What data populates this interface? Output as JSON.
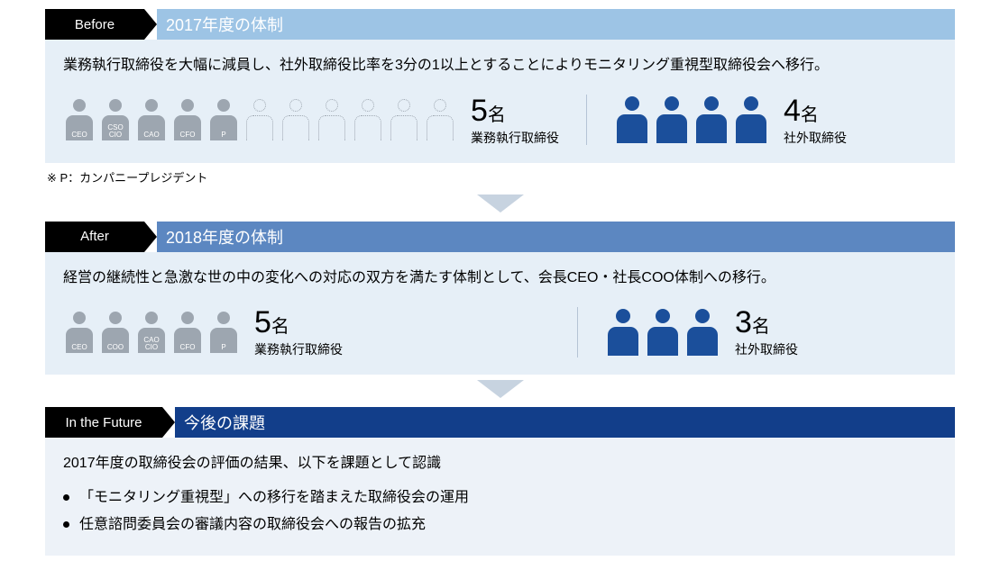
{
  "colors": {
    "before_header_bg": "#9dc4e5",
    "before_body_bg": "#e6eff7",
    "after_header_bg": "#5c87c1",
    "after_body_bg": "#e6eff7",
    "future_header_bg": "#123e8a",
    "future_body_bg": "#edf2f8",
    "person_gray": "#9da6b0",
    "person_blue": "#1b4f9b",
    "chevron_arrow": "#c7d3e0",
    "divider": "#b5c4d5"
  },
  "before": {
    "tag": "Before",
    "title": "2017年度の体制",
    "desc": "業務執行取締役を大幅に減員し、社外取締役比率を3分の1以上とすることによりモニタリング重視型取締役会へ移行。",
    "exec": {
      "filled_labels": [
        "CEO",
        "CSO\nCIO",
        "CAO",
        "CFO",
        "P"
      ],
      "outline_count": 6,
      "count": "5",
      "unit": "名",
      "label": "業務執行取締役"
    },
    "outside": {
      "count": "4",
      "unit": "名",
      "label": "社外取締役",
      "icon_count": 4
    }
  },
  "note": "※ P：カンパニープレジデント",
  "after": {
    "tag": "After",
    "title": "2018年度の体制",
    "desc": "経営の継続性と急激な世の中の変化への対応の双方を満たす体制として、会長CEO・社長COO体制への移行。",
    "exec": {
      "filled_labels": [
        "CEO",
        "COO",
        "CAO\nCIO",
        "CFO",
        "P"
      ],
      "count": "5",
      "unit": "名",
      "label": "業務執行取締役"
    },
    "outside": {
      "count": "3",
      "unit": "名",
      "label": "社外取締役",
      "icon_count": 3
    }
  },
  "future": {
    "tag": "In the Future",
    "title": "今後の課題",
    "desc": "2017年度の取締役会の評価の結果、以下を課題として認識",
    "bullets": [
      "「モニタリング重視型」への移行を踏まえた取締役会の運用",
      "任意諮問委員会の審議内容の取締役会への報告の拡充"
    ]
  }
}
